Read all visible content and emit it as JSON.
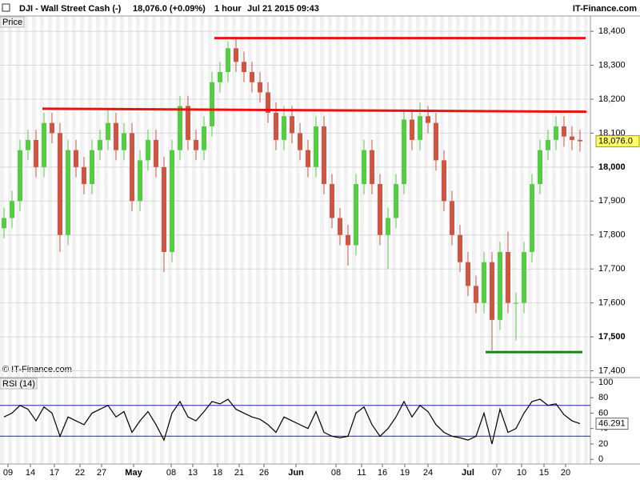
{
  "header": {
    "symbol": "DJI - Wall Street Cash (-)",
    "quote": "18,076.0 (+0.09%)",
    "interval": "1 hour",
    "datetime": "Jul 21 2015 09:43",
    "brand": "IT-Finance.com",
    "price_label": "Price",
    "copyright": "© IT-Finance.com"
  },
  "chart_data": [
    {
      "type": "candlestick",
      "title": "Price",
      "up_color": "#55cc44",
      "down_color": "#cc5544",
      "open": [
        17820,
        17850,
        17900,
        18050,
        18080,
        18000,
        18130,
        18100,
        17800,
        18050,
        18000,
        17950,
        18050,
        18080,
        18130,
        18050,
        18100,
        17900,
        18020,
        18080,
        18000,
        17750,
        18050,
        18180,
        18080,
        18050,
        18120,
        18250,
        18280,
        18350,
        18310,
        18280,
        18250,
        18220,
        18160,
        18080,
        18150,
        18100,
        18050,
        18000,
        18120,
        17950,
        17850,
        17800,
        17770,
        17950,
        18050,
        17950,
        17800,
        17850,
        17950,
        18140,
        18080,
        18150,
        18130,
        18020,
        17900,
        17800,
        17720,
        17650,
        17600,
        17720,
        17550,
        17750,
        17600,
        17600,
        17750,
        17950,
        18050,
        18080,
        18120,
        18090,
        18080
      ],
      "high": [
        17880,
        17930,
        18080,
        18110,
        18110,
        18160,
        18160,
        18130,
        18080,
        18080,
        18030,
        18080,
        18110,
        18170,
        18160,
        18130,
        18130,
        18050,
        18110,
        18110,
        18030,
        18080,
        18210,
        18210,
        18110,
        18150,
        18280,
        18310,
        18370,
        18380,
        18340,
        18310,
        18280,
        18250,
        18190,
        18180,
        18180,
        18130,
        18080,
        18150,
        18150,
        17980,
        17880,
        17830,
        17980,
        18080,
        18080,
        17980,
        17880,
        17980,
        18170,
        18170,
        18190,
        18180,
        18160,
        18050,
        17930,
        17830,
        17750,
        17680,
        17750,
        17750,
        17780,
        17810,
        17630,
        17780,
        17980,
        18080,
        18110,
        18150,
        18150,
        18120,
        18110
      ],
      "low": [
        17790,
        17820,
        17870,
        18020,
        17970,
        17970,
        18070,
        17750,
        17770,
        17970,
        17920,
        17920,
        18020,
        18050,
        18020,
        18020,
        17870,
        17870,
        17990,
        17970,
        17690,
        17720,
        18020,
        18050,
        18020,
        18020,
        18090,
        18220,
        18250,
        18280,
        18250,
        18220,
        18190,
        18130,
        18050,
        18050,
        18070,
        18020,
        17970,
        17970,
        17920,
        17820,
        17770,
        17710,
        17740,
        17920,
        17920,
        17770,
        17700,
        17820,
        17920,
        18050,
        18050,
        18100,
        17990,
        17870,
        17770,
        17690,
        17620,
        17570,
        17570,
        17460,
        17520,
        17570,
        17490,
        17570,
        17720,
        17920,
        18020,
        18050,
        18060,
        18050,
        18046
      ],
      "close": [
        17850,
        17900,
        18050,
        18080,
        18000,
        18130,
        18100,
        17800,
        18050,
        18000,
        17950,
        18050,
        18080,
        18130,
        18050,
        18100,
        17900,
        18020,
        18080,
        18000,
        17750,
        18050,
        18180,
        18080,
        18050,
        18120,
        18250,
        18280,
        18350,
        18310,
        18280,
        18250,
        18220,
        18160,
        18080,
        18150,
        18100,
        18050,
        18000,
        18120,
        17950,
        17850,
        17800,
        17770,
        17950,
        18050,
        17950,
        17800,
        17850,
        17950,
        18140,
        18080,
        18150,
        18130,
        18020,
        17900,
        17800,
        17720,
        17650,
        17600,
        17720,
        17550,
        17750,
        17600,
        17600,
        17750,
        17950,
        18050,
        18080,
        18120,
        18090,
        18080,
        18076
      ],
      "ylim": [
        17380,
        18445
      ],
      "yticks": [
        {
          "value": 17400,
          "label": "17,400"
        },
        {
          "value": 17500,
          "label": "17,500"
        },
        {
          "value": 17600,
          "label": "17,600"
        },
        {
          "value": 17700,
          "label": "17,700"
        },
        {
          "value": 17800,
          "label": "17,800"
        },
        {
          "value": 17900,
          "label": "17,900"
        },
        {
          "value": 18000,
          "label": "18,000"
        },
        {
          "value": 18100,
          "label": "18,100"
        },
        {
          "value": 18200,
          "label": "18,200"
        },
        {
          "value": 18300,
          "label": "18,300"
        },
        {
          "value": 18400,
          "label": "18,400"
        }
      ],
      "grid": true,
      "last_price": {
        "value": 18076,
        "label": "18,076.0"
      },
      "levels": [
        {
          "x": [
            26.3,
            72.7
          ],
          "y": [
            18380,
            18380
          ],
          "color": "#ee1111"
        },
        {
          "x": [
            4.8,
            72.8
          ],
          "y": [
            18172,
            18163
          ],
          "color": "#ee1111"
        },
        {
          "x": [
            60.2,
            72.3
          ],
          "y": [
            17455,
            17455
          ],
          "color": "#118811"
        }
      ]
    },
    {
      "type": "line",
      "title": "RSI (14)",
      "color": "#000000",
      "values": [
        55,
        60,
        70,
        65,
        50,
        68,
        60,
        30,
        55,
        50,
        45,
        60,
        65,
        70,
        55,
        62,
        35,
        50,
        62,
        45,
        25,
        60,
        75,
        55,
        50,
        62,
        75,
        72,
        78,
        65,
        60,
        55,
        52,
        45,
        35,
        55,
        50,
        45,
        40,
        62,
        35,
        30,
        28,
        30,
        60,
        68,
        45,
        30,
        40,
        55,
        75,
        55,
        70,
        62,
        45,
        35,
        30,
        28,
        25,
        30,
        60,
        20,
        65,
        35,
        40,
        60,
        75,
        78,
        70,
        72,
        58,
        50,
        46.291
      ],
      "ylim": [
        -6,
        104
      ],
      "yticks": [
        0,
        20,
        40,
        60,
        80,
        100
      ],
      "levels": [
        30,
        70
      ],
      "level_color": "#2222aa",
      "xticks": [
        {
          "value": 0.5,
          "label": "09"
        },
        {
          "value": 3.3,
          "label": "14"
        },
        {
          "value": 6.3,
          "label": "17"
        },
        {
          "value": 9.5,
          "label": "22"
        },
        {
          "value": 12.2,
          "label": "27"
        },
        {
          "value": 16.2,
          "label": "May"
        },
        {
          "value": 20.9,
          "label": "08"
        },
        {
          "value": 23.6,
          "label": "13"
        },
        {
          "value": 26.7,
          "label": "18"
        },
        {
          "value": 29.4,
          "label": "21"
        },
        {
          "value": 32.5,
          "label": "26"
        },
        {
          "value": 36.5,
          "label": "Jun"
        },
        {
          "value": 41.5,
          "label": "08"
        },
        {
          "value": 44.7,
          "label": "11"
        },
        {
          "value": 47.3,
          "label": "16"
        },
        {
          "value": 50.1,
          "label": "19"
        },
        {
          "value": 53,
          "label": "24"
        },
        {
          "value": 58,
          "label": "Jul"
        },
        {
          "value": 61.6,
          "label": "07"
        },
        {
          "value": 64.7,
          "label": "10"
        },
        {
          "value": 67.5,
          "label": "15"
        },
        {
          "value": 70.2,
          "label": "20"
        }
      ]
    }
  ]
}
